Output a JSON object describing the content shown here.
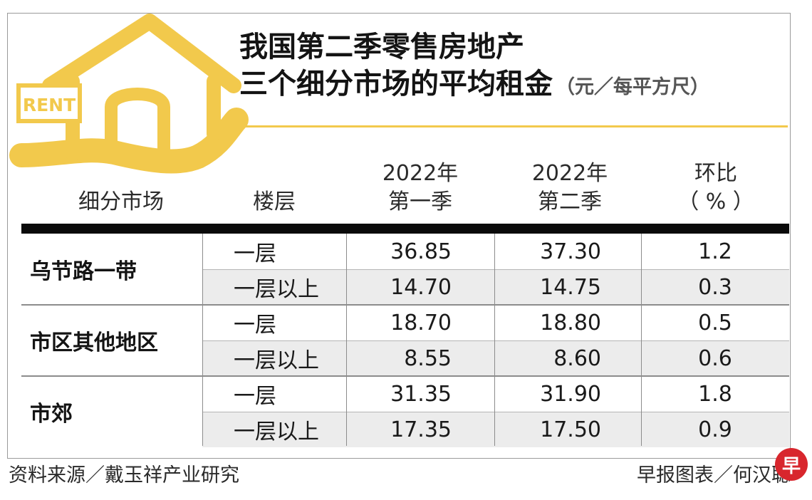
{
  "header": {
    "title_line1": "我国第二季零售房地产",
    "title_line2": "三个细分市场的平均租金",
    "unit": "（元／每平方尺）",
    "logo_text": "RENT"
  },
  "table": {
    "col_market": "细分市场",
    "col_floor": "楼层",
    "col_q1_year": "2022年",
    "col_q1_q": "第一季",
    "col_q2_year": "2022年",
    "col_q2_q": "第二季",
    "col_qoq": "环比",
    "col_qoq_unit": "（ % ）"
  },
  "chart_data": {
    "type": "table",
    "title": "我国第二季零售房地产 三个细分市场的平均租金（元／每平方尺）",
    "columns": [
      "细分市场",
      "楼层",
      "2022年第一季",
      "2022年第二季",
      "环比（ % ）"
    ],
    "groups": [
      {
        "segment": "乌节路一带",
        "rows": [
          {
            "floor": "一层",
            "q1": "36.85",
            "q2": "37.30",
            "qoq": "1.2"
          },
          {
            "floor": "一层以上",
            "q1": "14.70",
            "q2": "14.75",
            "qoq": "0.3"
          }
        ]
      },
      {
        "segment": "市区其他地区",
        "rows": [
          {
            "floor": "一层",
            "q1": "18.70",
            "q2": "18.80",
            "qoq": "0.5"
          },
          {
            "floor": "一层以上",
            "q1": "8.55",
            "q2": "8.60",
            "qoq": "0.6"
          }
        ]
      },
      {
        "segment": "市郊",
        "rows": [
          {
            "floor": "一层",
            "q1": "31.35",
            "q2": "31.90",
            "qoq": "1.8"
          },
          {
            "floor": "一层以上",
            "q1": "17.35",
            "q2": "17.50",
            "qoq": "0.9"
          }
        ]
      }
    ]
  },
  "footer": {
    "source": "资料来源／戴玉祥产业研究",
    "credit": "早报图表／何汉聪",
    "badge": "早"
  },
  "colors": {
    "accent_yellow": "#f2c94c",
    "band_gray": "#ececec",
    "badge_red": "#d8262d"
  }
}
